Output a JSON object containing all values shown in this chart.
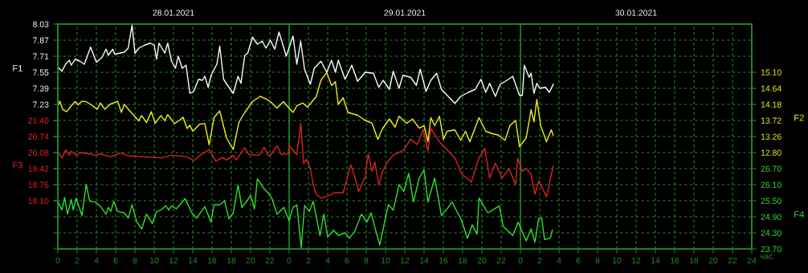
{
  "chart_data": [
    {
      "type": "line",
      "xlabel": "час.",
      "ylabel": "F1",
      "y2label": "F2",
      "xlim": [
        "2021-01-28T00:00",
        "2021-01-31T00:00"
      ],
      "xticks": [
        {
          "value": "2021-01-28T00:00",
          "label": "0"
        },
        {
          "value": "2021-01-28T02:00",
          "label": "2"
        },
        {
          "value": "2021-01-28T04:00",
          "label": "4"
        },
        {
          "value": "2021-01-28T06:00",
          "label": "6"
        },
        {
          "value": "2021-01-28T08:00",
          "label": "8"
        },
        {
          "value": "2021-01-28T10:00",
          "label": "10"
        },
        {
          "value": "2021-01-28T12:00",
          "label": "12"
        },
        {
          "value": "2021-01-28T14:00",
          "label": "14"
        },
        {
          "value": "2021-01-28T16:00",
          "label": "16"
        },
        {
          "value": "2021-01-28T18:00",
          "label": "18"
        },
        {
          "value": "2021-01-28T20:00",
          "label": "20"
        },
        {
          "value": "2021-01-28T22:00",
          "label": "22"
        },
        {
          "value": "2021-01-29T00:00",
          "label": "0"
        },
        {
          "value": "2021-01-29T02:00",
          "label": "2"
        },
        {
          "value": "2021-01-29T04:00",
          "label": "4"
        },
        {
          "value": "2021-01-29T06:00",
          "label": "6"
        },
        {
          "value": "2021-01-29T08:00",
          "label": "8"
        },
        {
          "value": "2021-01-29T10:00",
          "label": "10"
        },
        {
          "value": "2021-01-29T12:00",
          "label": "12"
        },
        {
          "value": "2021-01-29T14:00",
          "label": "14"
        },
        {
          "value": "2021-01-29T16:00",
          "label": "16"
        },
        {
          "value": "2021-01-29T18:00",
          "label": "18"
        },
        {
          "value": "2021-01-29T20:00",
          "label": "20"
        },
        {
          "value": "2021-01-29T22:00",
          "label": "22"
        },
        {
          "value": "2021-01-30T00:00",
          "label": "0"
        },
        {
          "value": "2021-01-30T02:00",
          "label": "2"
        },
        {
          "value": "2021-01-30T04:00",
          "label": "4"
        },
        {
          "value": "2021-01-30T06:00",
          "label": "6"
        },
        {
          "value": "2021-01-30T08:00",
          "label": "8"
        },
        {
          "value": "2021-01-30T10:00",
          "label": "10"
        },
        {
          "value": "2021-01-30T12:00",
          "label": "12"
        },
        {
          "value": "2021-01-30T14:00",
          "label": "14"
        },
        {
          "value": "2021-01-30T16:00",
          "label": "16"
        },
        {
          "value": "2021-01-30T18:00",
          "label": "18"
        },
        {
          "value": "2021-01-30T20:00",
          "label": "20"
        },
        {
          "value": "2021-01-30T22:00",
          "label": "22"
        },
        {
          "value": "2021-01-31T00:00",
          "label": "24"
        }
      ],
      "x2lim": [
        "2021-01-28T00:00",
        "2021-01-31T00:00"
      ],
      "x2ticks": [
        {
          "value": "2021-01-28T12:00",
          "label": "28.01.2021"
        },
        {
          "value": "2021-01-29T12:00",
          "label": "29.01.2021"
        },
        {
          "value": "2021-01-30T12:00",
          "label": "30.01.2021"
        }
      ],
      "ylim": [
        5.79,
        8.03
      ],
      "yticks": [
        8.03,
        7.87,
        7.71,
        7.55,
        7.39,
        7.23,
        {
          "value": 7.07,
          "label": null
        },
        {
          "value": 6.91,
          "label": null
        },
        {
          "value": 6.75,
          "label": null
        },
        {
          "value": 6.59,
          "label": null
        },
        {
          "value": 6.43,
          "label": null
        },
        {
          "value": 6.27,
          "label": null
        },
        {
          "value": 6.11,
          "label": null
        },
        {
          "value": 5.95,
          "label": null
        },
        {
          "value": 5.79,
          "label": null
        }
      ],
      "y2lim": [
        10.04,
        16.48
      ],
      "y2ticks": [
        {
          "value": 15.1,
          "label": "15.10"
        },
        14.64,
        14.18,
        13.72,
        13.26,
        {
          "value": 12.8,
          "label": "12.80"
        }
      ],
      "grid": true,
      "series": [
        {
          "color": "#ffffff",
          "axis": "y",
          "x": [
            "2021-01-28T00:00",
            "2021-01-28T00:26",
            "2021-01-28T00:48",
            "2021-01-28T01:12",
            "2021-01-28T01:24",
            "2021-01-28T01:48",
            "2021-01-28T02:18",
            "2021-01-28T02:45",
            "2021-01-28T03:24",
            "2021-01-28T04:00",
            "2021-01-28T04:36",
            "2021-01-28T05:00",
            "2021-01-28T05:15",
            "2021-01-28T05:42",
            "2021-01-28T05:54",
            "2021-01-28T06:54",
            "2021-01-28T07:18",
            "2021-01-28T07:42",
            "2021-01-28T08:00",
            "2021-01-28T08:24",
            "2021-01-28T09:00",
            "2021-01-28T09:36",
            "2021-01-28T10:00",
            "2021-01-28T10:15",
            "2021-01-28T10:30",
            "2021-01-28T11:06",
            "2021-01-28T11:24",
            "2021-01-28T11:48",
            "2021-01-28T12:12",
            "2021-01-28T12:30",
            "2021-01-28T12:54",
            "2021-01-28T13:18",
            "2021-01-28T13:42",
            "2021-01-28T14:06",
            "2021-01-28T14:36",
            "2021-01-28T15:00",
            "2021-01-28T15:15",
            "2021-01-28T15:36",
            "2021-01-28T15:54",
            "2021-01-28T16:30",
            "2021-01-28T16:48",
            "2021-01-28T17:12",
            "2021-01-28T17:45",
            "2021-01-28T18:12",
            "2021-01-28T18:42",
            "2021-01-28T19:00",
            "2021-01-28T19:24",
            "2021-01-28T19:42",
            "2021-01-28T20:12",
            "2021-01-28T20:42",
            "2021-01-28T21:12",
            "2021-01-28T21:36",
            "2021-01-28T22:03",
            "2021-01-28T22:30",
            "2021-01-28T22:57",
            "2021-01-28T23:42",
            "2021-01-29T00:24",
            "2021-01-29T00:48",
            "2021-01-29T01:12",
            "2021-01-29T01:36",
            "2021-01-29T02:12",
            "2021-01-29T02:36",
            "2021-01-29T03:18",
            "2021-01-29T03:54",
            "2021-01-29T04:24",
            "2021-01-29T04:48",
            "2021-01-29T05:06",
            "2021-01-29T05:48",
            "2021-01-29T06:30",
            "2021-01-29T07:06",
            "2021-01-29T07:54",
            "2021-01-29T08:45",
            "2021-01-29T09:18",
            "2021-01-29T09:45",
            "2021-01-29T10:24",
            "2021-01-29T10:48",
            "2021-01-29T11:24",
            "2021-01-29T11:48",
            "2021-01-29T12:36",
            "2021-01-29T13:12",
            "2021-01-29T13:36",
            "2021-01-29T14:12",
            "2021-01-29T14:42",
            "2021-01-29T15:18",
            "2021-01-29T15:48",
            "2021-01-29T16:24",
            "2021-01-29T17:12",
            "2021-01-29T17:48",
            "2021-01-29T18:36",
            "2021-01-29T19:18",
            "2021-01-29T19:54",
            "2021-01-29T20:24",
            "2021-01-29T20:48",
            "2021-01-29T21:24",
            "2021-01-29T21:54",
            "2021-01-29T22:36",
            "2021-01-29T23:12",
            "2021-01-29T23:54",
            "2021-01-30T00:12",
            "2021-01-30T00:24",
            "2021-01-30T00:54",
            "2021-01-30T01:06",
            "2021-01-30T01:24",
            "2021-01-30T01:42",
            "2021-01-30T02:00",
            "2021-01-30T02:36",
            "2021-01-30T03:00",
            "2021-01-30T03:24"
          ],
          "values": [
            7.6,
            7.56,
            7.63,
            7.67,
            7.62,
            7.68,
            7.66,
            7.63,
            7.8,
            7.65,
            7.7,
            7.78,
            7.72,
            7.78,
            7.73,
            7.75,
            7.79,
            8.02,
            7.74,
            7.79,
            7.82,
            7.84,
            7.82,
            7.68,
            7.84,
            7.74,
            7.84,
            7.66,
            7.59,
            7.71,
            7.59,
            7.62,
            7.34,
            7.36,
            7.48,
            7.47,
            7.51,
            7.4,
            7.52,
            7.63,
            7.81,
            7.48,
            7.4,
            7.34,
            7.51,
            7.44,
            7.72,
            7.74,
            7.9,
            7.83,
            7.86,
            7.79,
            7.87,
            7.78,
            7.95,
            7.71,
            7.91,
            7.63,
            7.86,
            7.58,
            7.43,
            7.59,
            7.66,
            7.55,
            7.67,
            7.55,
            7.67,
            7.48,
            7.62,
            7.46,
            7.55,
            7.54,
            7.4,
            7.47,
            7.38,
            7.56,
            7.39,
            7.52,
            7.5,
            7.42,
            7.58,
            7.36,
            7.47,
            7.54,
            7.38,
            7.32,
            7.24,
            7.31,
            7.35,
            7.38,
            7.48,
            7.35,
            7.44,
            7.31,
            7.43,
            7.47,
            7.51,
            7.32,
            7.32,
            7.62,
            7.5,
            7.54,
            7.34,
            7.44,
            7.39,
            7.4,
            7.35,
            7.43
          ]
        },
        {
          "color": "#f0f020",
          "axis": "y2",
          "x": [
            "2021-01-28T00:00",
            "2021-01-28T00:12",
            "2021-01-28T00:30",
            "2021-01-28T00:54",
            "2021-01-28T01:24",
            "2021-01-28T01:48",
            "2021-01-28T02:06",
            "2021-01-28T02:30",
            "2021-01-28T02:54",
            "2021-01-28T03:24",
            "2021-01-28T04:06",
            "2021-01-28T04:24",
            "2021-01-28T04:54",
            "2021-01-28T05:24",
            "2021-01-28T06:12",
            "2021-01-28T06:36",
            "2021-01-28T06:54",
            "2021-01-28T07:36",
            "2021-01-28T08:24",
            "2021-01-28T08:42",
            "2021-01-28T09:12",
            "2021-01-28T09:42",
            "2021-01-28T10:06",
            "2021-01-28T10:42",
            "2021-01-28T11:06",
            "2021-01-28T11:24",
            "2021-01-28T12:06",
            "2021-01-28T12:36",
            "2021-01-28T13:00",
            "2021-01-28T13:24",
            "2021-01-28T13:42",
            "2021-01-28T14:00",
            "2021-01-28T14:42",
            "2021-01-28T15:15",
            "2021-01-28T15:42",
            "2021-01-28T16:12",
            "2021-01-28T16:48",
            "2021-01-28T17:30",
            "2021-01-28T18:12",
            "2021-01-28T18:48",
            "2021-01-28T19:24",
            "2021-01-28T20:12",
            "2021-01-28T21:00",
            "2021-01-28T21:30",
            "2021-01-28T22:03",
            "2021-01-28T22:45",
            "2021-01-28T23:24",
            "2021-01-29T00:00",
            "2021-01-29T00:24",
            "2021-01-29T00:48",
            "2021-01-29T01:24",
            "2021-01-29T01:54",
            "2021-01-29T02:48",
            "2021-01-29T03:18",
            "2021-01-29T03:54",
            "2021-01-29T04:24",
            "2021-01-29T04:48",
            "2021-01-29T05:06",
            "2021-01-29T05:36",
            "2021-01-29T06:06",
            "2021-01-29T07:06",
            "2021-01-29T07:54",
            "2021-01-29T08:36",
            "2021-01-29T09:12",
            "2021-01-29T09:42",
            "2021-01-29T10:24",
            "2021-01-29T11:00",
            "2021-01-29T11:24",
            "2021-01-29T12:12",
            "2021-01-29T12:48",
            "2021-01-29T13:30",
            "2021-01-29T14:00",
            "2021-01-29T14:24",
            "2021-01-29T14:42",
            "2021-01-29T15:06",
            "2021-01-29T15:36",
            "2021-01-29T16:00",
            "2021-01-29T16:24",
            "2021-01-29T17:12",
            "2021-01-29T17:48",
            "2021-01-29T18:18",
            "2021-01-29T18:45",
            "2021-01-29T19:42",
            "2021-01-29T20:24",
            "2021-01-29T21:06",
            "2021-01-29T21:42",
            "2021-01-29T22:24",
            "2021-01-29T22:54",
            "2021-01-29T23:30",
            "2021-01-29T23:54",
            "2021-01-30T00:36",
            "2021-01-30T01:06",
            "2021-01-30T01:24",
            "2021-01-30T01:42",
            "2021-01-30T02:06",
            "2021-01-30T02:42",
            "2021-01-30T03:12",
            "2021-01-30T03:24"
          ],
          "values": [
            14.14,
            14.27,
            14.04,
            13.97,
            14.14,
            14.26,
            14.17,
            14.27,
            14.26,
            14.18,
            14.04,
            14.22,
            14.04,
            14.18,
            14.27,
            13.95,
            14.18,
            13.95,
            13.71,
            13.86,
            13.66,
            13.97,
            13.64,
            13.86,
            13.71,
            13.89,
            13.63,
            13.72,
            13.81,
            13.49,
            13.58,
            13.41,
            13.61,
            13.63,
            13.02,
            13.8,
            13.99,
            13.22,
            12.89,
            13.68,
            13.95,
            14.26,
            14.41,
            14.35,
            14.26,
            14.07,
            14.26,
            14.07,
            13.95,
            14.14,
            14.22,
            14.1,
            14.4,
            14.87,
            15.09,
            14.72,
            14.83,
            14.18,
            14.37,
            13.95,
            13.87,
            13.72,
            13.64,
            13.18,
            13.49,
            13.76,
            13.53,
            13.84,
            13.64,
            13.76,
            13.5,
            13.57,
            13.11,
            13.8,
            13.57,
            13.84,
            13.18,
            13.41,
            13.45,
            13.15,
            13.41,
            13.11,
            13.8,
            13.41,
            13.34,
            13.3,
            13.15,
            13.57,
            13.72,
            12.97,
            13.22,
            14.03,
            13.68,
            14.32,
            13.57,
            13.11,
            13.45,
            13.3
          ]
        }
      ]
    },
    {
      "type": "line",
      "ylabel": "F3",
      "y2label": "F4",
      "tick_labels": "y",
      "xlim": [
        "2021-01-28T00:00",
        "2021-01-31T00:00"
      ],
      "ylim": [
        16.12,
        25.36
      ],
      "yticks": [
        {
          "value": 21.4,
          "label": "21.40"
        },
        20.74,
        20.08,
        19.42,
        18.76,
        {
          "value": 18.1,
          "label": "18.10"
        }
      ],
      "y2lim": [
        23.7,
        32.1
      ],
      "y2ticks": [
        {
          "value": 26.7,
          "label": "26.70"
        },
        {
          "value": 26.1,
          "label": "26.10"
        },
        {
          "value": 25.5,
          "label": "25.50"
        },
        {
          "value": 24.9,
          "label": "24.90"
        },
        {
          "value": 24.3,
          "label": "24.30"
        },
        {
          "value": 23.7,
          "label": "23.70"
        }
      ],
      "series": [
        {
          "color": "#e02020",
          "axis": "y",
          "x": [
            "2021-01-28T00:00",
            "2021-01-28T00:26",
            "2021-01-28T00:48",
            "2021-01-28T01:12",
            "2021-01-28T01:24",
            "2021-01-28T01:54",
            "2021-01-28T02:18",
            "2021-01-28T03:12",
            "2021-01-28T03:54",
            "2021-01-28T04:24",
            "2021-01-28T05:24",
            "2021-01-28T06:36",
            "2021-01-28T07:18",
            "2021-01-28T08:42",
            "2021-01-28T10:42",
            "2021-01-28T11:48",
            "2021-01-28T13:24",
            "2021-01-28T14:06",
            "2021-01-28T14:42",
            "2021-01-28T15:42",
            "2021-01-28T16:24",
            "2021-01-28T17:06",
            "2021-01-28T17:30",
            "2021-01-28T18:12",
            "2021-01-28T18:30",
            "2021-01-28T19:24",
            "2021-01-28T19:48",
            "2021-01-28T20:54",
            "2021-01-28T21:24",
            "2021-01-28T21:48",
            "2021-01-28T22:03",
            "2021-01-28T22:45",
            "2021-01-28T23:12",
            "2021-01-28T23:54",
            "2021-01-29T00:00",
            "2021-01-29T00:48",
            "2021-01-29T01:12",
            "2021-01-29T01:30",
            "2021-01-29T01:48",
            "2021-01-29T02:12",
            "2021-01-29T02:30",
            "2021-01-29T02:48",
            "2021-01-29T03:18",
            "2021-01-29T04:12",
            "2021-01-29T04:42",
            "2021-01-29T05:36",
            "2021-01-29T06:00",
            "2021-01-29T06:24",
            "2021-01-29T06:48",
            "2021-01-29T07:12",
            "2021-01-29T07:54",
            "2021-01-29T08:12",
            "2021-01-29T08:36",
            "2021-01-29T08:54",
            "2021-01-29T09:18",
            "2021-01-29T09:42",
            "2021-01-29T10:18",
            "2021-01-29T10:48",
            "2021-01-29T11:54",
            "2021-01-29T12:36",
            "2021-01-29T13:18",
            "2021-01-29T13:54",
            "2021-01-29T14:24",
            "2021-01-29T14:42",
            "2021-01-29T15:36",
            "2021-01-29T16:24",
            "2021-01-29T17:12",
            "2021-01-29T17:54",
            "2021-01-29T18:54",
            "2021-01-29T19:42",
            "2021-01-29T20:18",
            "2021-01-29T20:48",
            "2021-01-29T21:24",
            "2021-01-29T22:06",
            "2021-01-29T22:48",
            "2021-01-29T23:30",
            "2021-01-29T23:42",
            "2021-01-30T00:12",
            "2021-01-30T00:36",
            "2021-01-30T01:06",
            "2021-01-30T01:30",
            "2021-01-30T01:54",
            "2021-01-30T02:42",
            "2021-01-30T03:24"
          ],
          "values": [
            20.08,
            19.86,
            20.19,
            19.97,
            20.14,
            19.97,
            20.08,
            20.03,
            19.97,
            20.03,
            19.91,
            20.06,
            19.95,
            19.91,
            19.86,
            19.97,
            19.91,
            19.75,
            19.95,
            20.21,
            19.73,
            19.88,
            19.77,
            19.97,
            19.77,
            20.28,
            20.0,
            19.97,
            20.3,
            19.97,
            19.97,
            20.36,
            20.0,
            20.03,
            20.36,
            20.0,
            21.29,
            19.64,
            19.8,
            19.42,
            18.76,
            18.37,
            18.21,
            18.32,
            18.43,
            18.43,
            18.98,
            19.58,
            19.09,
            18.48,
            19.09,
            20.03,
            19.31,
            19.69,
            18.76,
            19.31,
            19.75,
            19.97,
            20.19,
            20.63,
            20.41,
            21.02,
            20.14,
            21.07,
            20.52,
            20.19,
            19.86,
            19.2,
            18.87,
            19.86,
            20.25,
            19.03,
            19.64,
            19.03,
            19.42,
            18.76,
            19.86,
            19.31,
            19.42,
            19.2,
            18.37,
            18.92,
            18.26,
            19.53
          ]
        },
        {
          "color": "#30e030",
          "axis": "y2",
          "x": [
            "2021-01-28T00:00",
            "2021-01-28T00:26",
            "2021-01-28T00:42",
            "2021-01-28T01:00",
            "2021-01-28T01:24",
            "2021-01-28T01:36",
            "2021-01-28T01:54",
            "2021-01-28T02:30",
            "2021-01-28T02:57",
            "2021-01-28T03:18",
            "2021-01-28T03:54",
            "2021-01-28T04:24",
            "2021-01-28T05:00",
            "2021-01-28T05:15",
            "2021-01-28T05:30",
            "2021-01-28T05:48",
            "2021-01-28T06:12",
            "2021-01-28T06:54",
            "2021-01-28T07:18",
            "2021-01-28T07:42",
            "2021-01-28T08:12",
            "2021-01-28T08:42",
            "2021-01-28T09:12",
            "2021-01-28T09:48",
            "2021-01-28T10:15",
            "2021-01-28T10:42",
            "2021-01-28T11:12",
            "2021-01-28T11:30",
            "2021-01-28T11:48",
            "2021-01-28T12:18",
            "2021-01-28T13:12",
            "2021-01-28T13:54",
            "2021-01-28T14:24",
            "2021-01-28T15:15",
            "2021-01-28T15:54",
            "2021-01-28T16:12",
            "2021-01-28T16:48",
            "2021-01-28T17:18",
            "2021-01-28T17:45",
            "2021-01-28T18:12",
            "2021-01-28T18:42",
            "2021-01-28T19:06",
            "2021-01-28T19:36",
            "2021-01-28T20:00",
            "2021-01-28T20:24",
            "2021-01-28T20:42",
            "2021-01-28T21:24",
            "2021-01-28T21:48",
            "2021-01-28T22:12",
            "2021-01-28T22:45",
            "2021-01-28T23:27",
            "2021-01-29T00:00",
            "2021-01-29T00:24",
            "2021-01-29T00:48",
            "2021-01-29T01:15",
            "2021-01-29T01:36",
            "2021-01-29T02:06",
            "2021-01-29T02:30",
            "2021-01-29T03:12",
            "2021-01-29T03:36",
            "2021-01-29T04:00",
            "2021-01-29T04:36",
            "2021-01-29T05:06",
            "2021-01-29T05:48",
            "2021-01-29T06:15",
            "2021-01-29T06:48",
            "2021-01-29T07:30",
            "2021-01-29T08:03",
            "2021-01-29T08:30",
            "2021-01-29T08:54",
            "2021-01-29T09:24",
            "2021-01-29T09:54",
            "2021-01-29T10:18",
            "2021-01-29T10:48",
            "2021-01-29T11:24",
            "2021-01-29T11:54",
            "2021-01-29T12:24",
            "2021-01-29T12:54",
            "2021-01-29T13:30",
            "2021-01-29T14:00",
            "2021-01-29T14:24",
            "2021-01-29T15:06",
            "2021-01-29T15:48",
            "2021-01-29T16:30",
            "2021-01-29T16:54",
            "2021-01-29T17:54",
            "2021-01-29T18:30",
            "2021-01-29T19:00",
            "2021-01-29T19:30",
            "2021-01-29T19:42",
            "2021-01-29T20:36",
            "2021-01-29T21:06",
            "2021-01-29T21:48",
            "2021-01-29T22:12",
            "2021-01-29T23:12",
            "2021-01-29T23:45",
            "2021-01-30T00:36",
            "2021-01-30T01:06",
            "2021-01-30T01:30",
            "2021-01-30T01:54",
            "2021-01-30T02:12",
            "2021-01-30T02:30",
            "2021-01-30T03:06",
            "2021-01-30T03:18"
          ],
          "values": [
            25.45,
            25.15,
            25.62,
            25.0,
            25.55,
            25.15,
            25.6,
            24.95,
            26.12,
            25.48,
            25.45,
            25.3,
            25.0,
            25.25,
            25.1,
            25.48,
            25.1,
            25.05,
            24.85,
            25.35,
            24.7,
            24.45,
            25.0,
            24.65,
            25.1,
            25.15,
            25.32,
            25.15,
            25.3,
            25.2,
            25.58,
            25.05,
            24.85,
            25.28,
            24.7,
            25.35,
            25.35,
            25.5,
            24.82,
            25.05,
            26.08,
            25.25,
            25.48,
            25.7,
            25.2,
            26.32,
            25.95,
            25.8,
            25.6,
            25.0,
            25.25,
            24.75,
            25.25,
            25.35,
            23.75,
            25.32,
            25.1,
            25.48,
            24.2,
            25.0,
            24.15,
            24.4,
            24.2,
            24.3,
            24.1,
            24.35,
            25.0,
            24.7,
            25.05,
            24.5,
            23.85,
            24.7,
            25.35,
            25.15,
            26.1,
            25.85,
            26.52,
            25.45,
            26.35,
            26.65,
            25.45,
            26.35,
            24.95,
            25.25,
            25.45,
            24.75,
            24.1,
            24.6,
            24.25,
            25.6,
            25.05,
            25.15,
            25.3,
            24.55,
            24.2,
            24.7,
            24.0,
            24.45,
            23.95,
            24.85,
            24.85,
            24.05,
            24.1,
            24.4
          ]
        }
      ]
    }
  ]
}
